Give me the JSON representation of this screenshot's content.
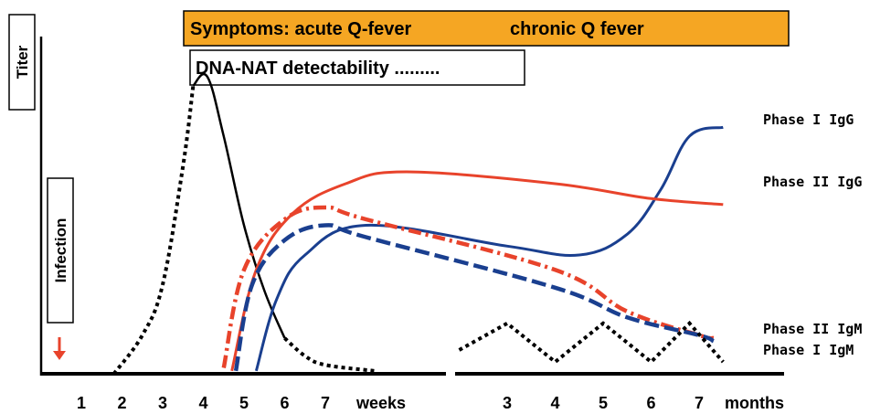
{
  "chart_data": {
    "type": "line",
    "title": "",
    "y_axis_label": "Titer",
    "event_label": "Infection",
    "x_axis_segments": [
      {
        "unit": "weeks",
        "ticks": [
          "1",
          "2",
          "3",
          "4",
          "5",
          "6",
          "7"
        ]
      },
      {
        "unit": "months",
        "ticks": [
          "3",
          "4",
          "5",
          "6",
          "7"
        ]
      }
    ],
    "banners": {
      "symptoms_acute": "Symptoms: acute Q-fever",
      "symptoms_chronic": "chronic Q fever",
      "dna_nat": "DNA-NAT detectability ........."
    },
    "y_scale": "relative titer 0-100",
    "series": [
      {
        "name": "DNA-NAT",
        "label": "",
        "color": "#000000",
        "style": "dotted-solid",
        "points": [
          [
            "w1.8",
            0
          ],
          [
            "w2.5",
            13
          ],
          [
            "w3.0",
            30
          ],
          [
            "w3.5",
            70
          ],
          [
            "w3.75",
            97
          ],
          [
            "w4.1",
            100
          ],
          [
            "w4.5",
            80
          ],
          [
            "w5.0",
            50
          ],
          [
            "w5.5",
            28
          ],
          [
            "w6.0",
            12
          ],
          [
            "w6.5",
            6
          ],
          [
            "w7.0",
            3
          ],
          [
            "w8.2",
            1
          ]
        ]
      },
      {
        "name": "Phase I IgG",
        "label": "Phase I IgG",
        "color": "#1a3f8f",
        "style": "solid",
        "points": [
          [
            "w5.3",
            1
          ],
          [
            "w5.8",
            25
          ],
          [
            "w6.5",
            40
          ],
          [
            "w8",
            50
          ],
          [
            "m3",
            43
          ],
          [
            "m4.5",
            40
          ],
          [
            "m5.5",
            47
          ],
          [
            "m6.2",
            62
          ],
          [
            "m6.8",
            80
          ],
          [
            "m7.5",
            83
          ]
        ]
      },
      {
        "name": "Phase II IgG",
        "label": "Phase II IgG",
        "color": "#e8432b",
        "style": "solid",
        "points": [
          [
            "w4.7",
            1
          ],
          [
            "w5.3",
            35
          ],
          [
            "w6.2",
            54
          ],
          [
            "w7.5",
            64
          ],
          [
            "w9",
            68
          ],
          [
            "m4",
            64
          ],
          [
            "m6",
            59
          ],
          [
            "m7.5",
            57
          ]
        ]
      },
      {
        "name": "Phase II IgM",
        "label": "Phase II IgM",
        "color": "#e8432b",
        "style": "dash-dot",
        "points": [
          [
            "w4.5",
            2
          ],
          [
            "w5.0",
            35
          ],
          [
            "w6.0",
            52
          ],
          [
            "w7.0",
            56
          ],
          [
            "w8",
            52
          ],
          [
            "m4",
            35
          ],
          [
            "m5.5",
            21
          ],
          [
            "m7",
            13
          ],
          [
            "m7.3",
            12
          ]
        ]
      },
      {
        "name": "Phase I IgM",
        "label": "Phase I IgM",
        "color": "#1a3f8f",
        "style": "dashed",
        "points": [
          [
            "w4.8",
            1
          ],
          [
            "w5.2",
            30
          ],
          [
            "w6.0",
            45
          ],
          [
            "w7.0",
            50
          ],
          [
            "w8",
            46
          ],
          [
            "m4",
            29
          ],
          [
            "m5.5",
            19
          ],
          [
            "m7",
            13
          ],
          [
            "m7.3",
            11
          ]
        ]
      },
      {
        "name": "chronic DNA-NAT",
        "label": "",
        "color": "#000000",
        "style": "dotted",
        "points": [
          [
            "m2",
            8
          ],
          [
            "m3",
            17
          ],
          [
            "m4",
            4
          ],
          [
            "m5",
            17
          ],
          [
            "m6",
            4
          ],
          [
            "m6.8",
            17
          ],
          [
            "m7.5",
            4
          ]
        ]
      }
    ]
  },
  "colors": {
    "banner_fill": "#f5a623",
    "red": "#e8432b",
    "blue": "#1a3f8f",
    "arrow": "#e8432b"
  }
}
